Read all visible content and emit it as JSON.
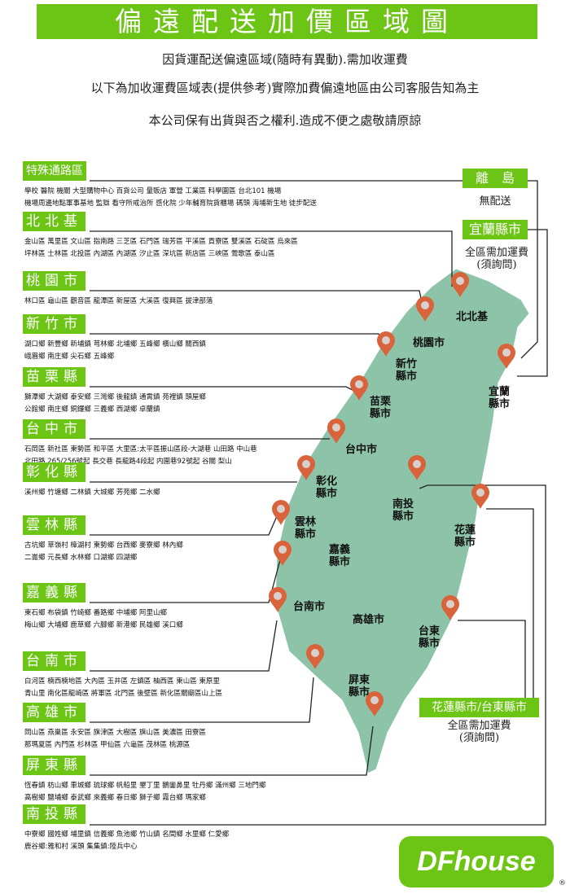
{
  "title": "偏遠配送加價區域圖",
  "subtitle": [
    "因貨運配送偏遠區域(隨時有異動).需加收運費",
    "以下為加收運費區域表(提供參考)實際加費偏遠地區由公司客服告知為主",
    "本公司保有出貨與否之權利.造成不便之處敬請原諒"
  ],
  "colors": {
    "accent": "#6cc515",
    "map": "#8dc4a9",
    "pin": "#d9633a"
  },
  "sections": [
    {
      "label": "特殊通路區",
      "lines": [
        "學校 醫院 機關 大型購物中心 百貨公司 量販店 軍營 工業區 科學園區 台北101 機場",
        "機場周邊地點軍事基地 監獄 看守所戒治所 感化院 少年輔育院貨櫃場 碼頭 海埔新生地 徒步配送"
      ]
    },
    {
      "label": "北北基",
      "lines": [
        "金山區 萬里區 文山區 指南路 三芝區 石門區 瑞芳區 平溪區 貢寮區 雙溪區 石碇區 烏來區",
        "坪林區 士林區 北投區 內湖區 內湖區 汐止區 深坑區 新店區 三峽區 鶯歌區 泰山區"
      ]
    },
    {
      "label": "桃園市",
      "lines": [
        "林口區 龜山區 觀音區 龍潭區 新屋區 大溪區 復興區 拔津部落"
      ]
    },
    {
      "label": "新竹市",
      "lines": [
        "湖口鄉 新豐鄉 新埔鎮 芎林鄉 北埔鄉 五峰鄉 橫山鄉 關西鎮",
        "峨眉鄉 南庄鄉 尖石鄉 五峰鄉"
      ]
    },
    {
      "label": "苗栗縣",
      "lines": [
        "獅潭鄉 大湖鄉 泰安鄉 三灣鄉 後龍鎮 通霄鎮 苑裡鎮 頭屋鄉",
        "公館鄉 南庄鄉 銅鑼鄉 三義鄉 西湖鄉 卓蘭鎮"
      ]
    },
    {
      "label": "台中市",
      "lines": [
        "石岡區 新社區 東勢區 和平區 大里區:太平區振山區段-大湖巷 山田路 中山巷",
        "北田路 265/256號起 長交巷 長龍路4段起 内圍巷92號起 谷關 梨山"
      ]
    },
    {
      "label": "彰化縣",
      "lines": [
        "溪州鄉 竹塘鄉 二林鎮 大城鄉 芳苑鄉 二水鄉"
      ]
    },
    {
      "label": "雲林縣",
      "lines": [
        "古坑鄉 草嶺村 樟湖村 東勢鄉 台西鄉 麥寮鄉 林內鄉",
        "二崙鄉 元長鄉 水林鄉 口湖鄉 四湖鄉"
      ]
    },
    {
      "label": "嘉義縣",
      "lines": [
        "東石鄉 布袋鎮 竹崎鄉 番路鄉 中埔鄉 阿里山鄉",
        "梅山鄉 大埔鄉 鹿草鄉 六腳鄉 新港鄉 民雄鄉 溪口鄉"
      ]
    },
    {
      "label": "台南市",
      "lines": [
        "白河區 楠西楠地區 大內區 玉井區 左鎮區 柚西區 東山區 東原里",
        "青山里 南化區龍崎區 將軍區 北門區 後壁區 新化區關廟區山上區"
      ]
    },
    {
      "label": "高雄市",
      "lines": [
        "岡山區 燕巢區 永安區 旗津區 大樹區 旗山區 美濃區 田寮區",
        "那瑪夏區 內門區 杉林區 甲仙區 六龜區 茂林區 桃源區"
      ]
    },
    {
      "label": "屏東縣",
      "lines": [
        "恆春鎮 枋山鄉 車城鄉 琉球鄉 帆船里 墾丁里 鵝鑾鼻里 牡丹鄉 滿州鄉 三地門鄉",
        "高樹鄉 鹽埔鄉 泰武鄉 來義鄉 春日鄉 獅子鄉 霧台鄉 瑪家鄉"
      ]
    },
    {
      "label": "南投縣",
      "lines": [
        "中寮鄉 國姓鄉 埔里鎮 信義鄉 魚池鄉 竹山鎮 名間鄉 水里鄉 仁愛鄉",
        "鹿谷鄉:雅和村 溪頭 集集鎮:陸兵中心"
      ]
    }
  ],
  "right": {
    "outer_islands": {
      "label": "離　島",
      "note": "無配送"
    },
    "yilan": {
      "label": "宜蘭縣市",
      "note1": "全區需加運費",
      "note2": "(須詢問)"
    },
    "hualien_taitung": {
      "label": "花蓮縣市/台東縣市",
      "note1": "全區需加運費",
      "note2": "(須詢問)"
    }
  },
  "map_labels": [
    {
      "name": "北北基"
    },
    {
      "name": "桃園市"
    },
    {
      "name": "新竹\n縣市"
    },
    {
      "name": "苗栗\n縣市"
    },
    {
      "name": "台中市"
    },
    {
      "name": "彰化\n縣市"
    },
    {
      "name": "南投\n縣市"
    },
    {
      "name": "雲林\n縣市"
    },
    {
      "name": "嘉義\n縣市"
    },
    {
      "name": "花蓮\n縣市"
    },
    {
      "name": "宜蘭\n縣市"
    },
    {
      "name": "台南市"
    },
    {
      "name": "高雄市"
    },
    {
      "name": "台東\n縣市"
    },
    {
      "name": "屏東\n縣市"
    }
  ],
  "logo": {
    "text": "DFhouse",
    "mark": "®"
  }
}
